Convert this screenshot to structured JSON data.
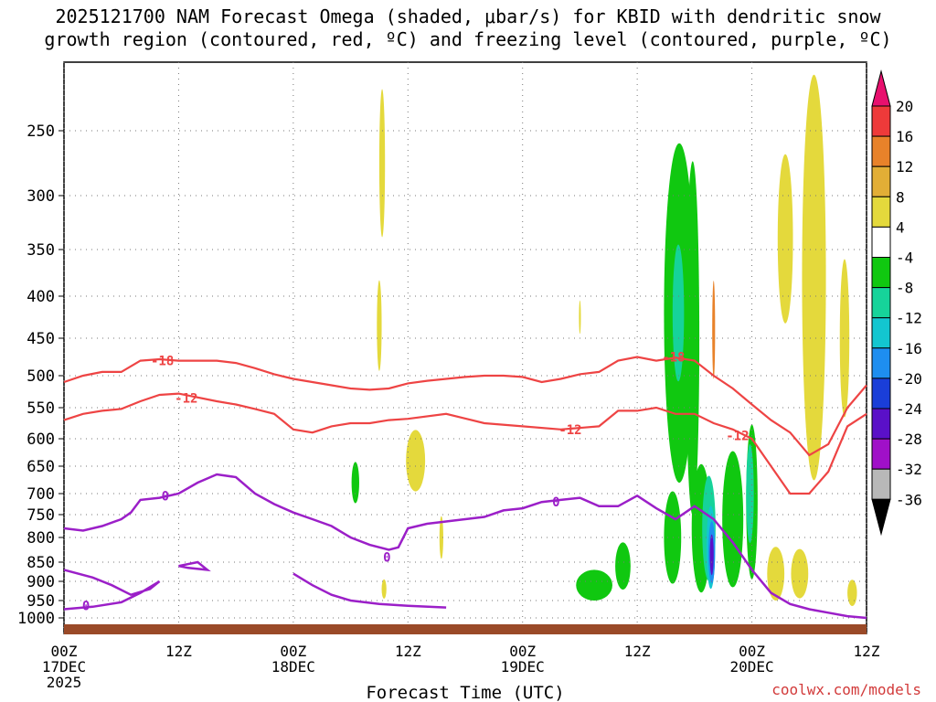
{
  "chart_data": {
    "type": "heatmap",
    "title_line1": "2025121700 NAM Forecast Omega (shaded, μbar/s) for KBID with dendritic snow",
    "title_line2": "growth region (contoured, red, ºC) and freezing level (contoured, purple, ºC)",
    "xlabel": "Forecast Time (UTC)",
    "x_ticks": [
      {
        "hour": 0,
        "label": "00Z",
        "date": "17DEC",
        "year": "2025"
      },
      {
        "hour": 12,
        "label": "12Z",
        "date": "",
        "year": ""
      },
      {
        "hour": 24,
        "label": "00Z",
        "date": "18DEC",
        "year": ""
      },
      {
        "hour": 36,
        "label": "12Z",
        "date": "",
        "year": ""
      },
      {
        "hour": 48,
        "label": "00Z",
        "date": "19DEC",
        "year": ""
      },
      {
        "hour": 60,
        "label": "12Z",
        "date": "",
        "year": ""
      },
      {
        "hour": 72,
        "label": "00Z",
        "date": "20DEC",
        "year": ""
      },
      {
        "hour": 84,
        "label": "12Z",
        "date": "",
        "year": ""
      }
    ],
    "x_range": [
      0,
      84
    ],
    "y_ticks": [
      250,
      300,
      350,
      400,
      450,
      500,
      550,
      600,
      650,
      700,
      750,
      800,
      850,
      900,
      950,
      1000
    ],
    "y_range": [
      200,
      1040
    ],
    "colorbar": {
      "labels": [
        "20",
        "16",
        "12",
        "8",
        "4",
        "-4",
        "-8",
        "-12",
        "-16",
        "-20",
        "-24",
        "-28",
        "-32",
        "-36"
      ],
      "colors": [
        "#e8106e",
        "#ee3a3a",
        "#e8822a",
        "#e2ae36",
        "#e4d93c",
        "#ffffff",
        "#10c810",
        "#16d39a",
        "#13c6d0",
        "#1e8ef0",
        "#1a3ed8",
        "#5a10c8",
        "#a010c8",
        "#b8b8b8",
        "#000000"
      ]
    },
    "contours": {
      "dgz_minus18": {
        "color": "#ee4444",
        "label": "-18",
        "points": [
          [
            0,
            510
          ],
          [
            2,
            500
          ],
          [
            4,
            495
          ],
          [
            6,
            495
          ],
          [
            8,
            480
          ],
          [
            10,
            478
          ],
          [
            12,
            480
          ],
          [
            16,
            480
          ],
          [
            18,
            483
          ],
          [
            20,
            490
          ],
          [
            22,
            498
          ],
          [
            24,
            505
          ],
          [
            26,
            510
          ],
          [
            28,
            515
          ],
          [
            30,
            520
          ],
          [
            32,
            522
          ],
          [
            34,
            520
          ],
          [
            36,
            512
          ],
          [
            38,
            508
          ],
          [
            40,
            505
          ],
          [
            42,
            502
          ],
          [
            44,
            500
          ],
          [
            46,
            500
          ],
          [
            48,
            502
          ],
          [
            50,
            510
          ],
          [
            52,
            505
          ],
          [
            54,
            498
          ],
          [
            56,
            495
          ],
          [
            58,
            480
          ],
          [
            60,
            475
          ],
          [
            62,
            480
          ],
          [
            64,
            476
          ],
          [
            66,
            480
          ],
          [
            68,
            500
          ],
          [
            70,
            520
          ],
          [
            72,
            545
          ],
          [
            74,
            570
          ],
          [
            76,
            590
          ],
          [
            78,
            630
          ],
          [
            80,
            610
          ],
          [
            82,
            550
          ],
          [
            84,
            515
          ]
        ]
      },
      "dgz_minus12": {
        "color": "#ee4444",
        "label": "-12",
        "points": [
          [
            0,
            570
          ],
          [
            2,
            560
          ],
          [
            4,
            555
          ],
          [
            6,
            552
          ],
          [
            8,
            540
          ],
          [
            10,
            530
          ],
          [
            12,
            528
          ],
          [
            16,
            540
          ],
          [
            18,
            545
          ],
          [
            20,
            552
          ],
          [
            22,
            560
          ],
          [
            24,
            585
          ],
          [
            26,
            590
          ],
          [
            28,
            580
          ],
          [
            30,
            575
          ],
          [
            32,
            575
          ],
          [
            34,
            570
          ],
          [
            36,
            568
          ],
          [
            40,
            560
          ],
          [
            44,
            575
          ],
          [
            48,
            580
          ],
          [
            52,
            585
          ],
          [
            56,
            580
          ],
          [
            58,
            555
          ],
          [
            60,
            555
          ],
          [
            62,
            550
          ],
          [
            64,
            560
          ],
          [
            66,
            560
          ],
          [
            68,
            575
          ],
          [
            70,
            585
          ],
          [
            72,
            600
          ],
          [
            74,
            650
          ],
          [
            76,
            700
          ],
          [
            78,
            700
          ],
          [
            80,
            660
          ],
          [
            82,
            580
          ],
          [
            84,
            560
          ]
        ]
      },
      "freezing_level": {
        "color": "#9b1fc8",
        "label": "0",
        "points": [
          [
            0,
            780
          ],
          [
            2,
            785
          ],
          [
            4,
            775
          ],
          [
            6,
            760
          ],
          [
            7,
            745
          ],
          [
            8,
            715
          ],
          [
            10,
            710
          ],
          [
            12,
            700
          ],
          [
            14,
            680
          ],
          [
            16,
            665
          ],
          [
            18,
            670
          ],
          [
            20,
            700
          ],
          [
            22,
            725
          ],
          [
            24,
            745
          ],
          [
            26,
            760
          ],
          [
            28,
            775
          ],
          [
            30,
            800
          ],
          [
            32,
            815
          ],
          [
            34,
            825
          ],
          [
            35,
            820
          ],
          [
            36,
            780
          ],
          [
            38,
            770
          ],
          [
            40,
            765
          ],
          [
            42,
            760
          ],
          [
            44,
            755
          ],
          [
            46,
            740
          ],
          [
            48,
            735
          ],
          [
            50,
            720
          ],
          [
            52,
            715
          ],
          [
            54,
            710
          ],
          [
            56,
            730
          ],
          [
            58,
            730
          ],
          [
            60,
            705
          ],
          [
            62,
            735
          ],
          [
            64,
            760
          ],
          [
            66,
            730
          ],
          [
            68,
            760
          ],
          [
            70,
            810
          ],
          [
            72,
            870
          ],
          [
            74,
            930
          ],
          [
            76,
            960
          ],
          [
            78,
            975
          ],
          [
            80,
            985
          ],
          [
            82,
            995
          ],
          [
            84,
            1000
          ]
        ]
      }
    },
    "annotations": [
      "-18",
      "-12",
      "-12",
      "-12",
      "-18",
      "0",
      "0",
      "0",
      "0"
    ],
    "credit": "coolwx.com/models"
  }
}
